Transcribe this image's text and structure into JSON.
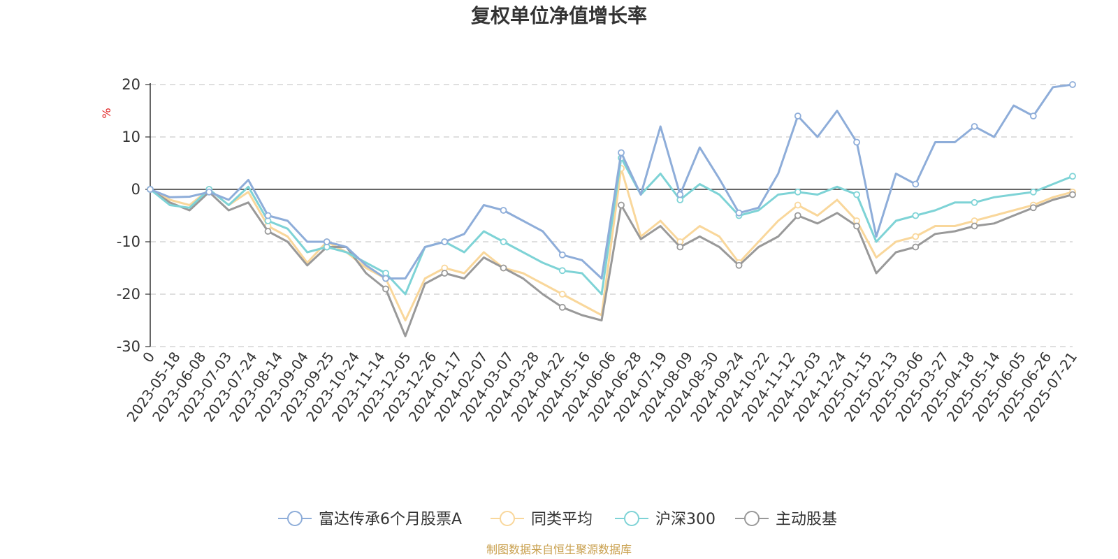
{
  "chart_data": {
    "type": "line",
    "title": "复权单位净值增长率",
    "ylabel": "%",
    "ylim": [
      -30,
      20
    ],
    "yticks": [
      "20",
      "10",
      "0",
      "-10",
      "-20",
      "-30"
    ],
    "x_ticks": [
      "0",
      "2023-05-18",
      "2023-06-08",
      "2023-07-03",
      "2023-07-24",
      "2023-08-14",
      "2023-09-04",
      "2023-09-25",
      "2023-10-24",
      "2023-11-14",
      "2023-12-05",
      "2023-12-26",
      "2024-01-17",
      "2024-02-07",
      "2024-03-07",
      "2024-03-28",
      "2024-04-22",
      "2024-05-16",
      "2024-06-06",
      "2024-06-28",
      "2024-07-19",
      "2024-08-09",
      "2024-08-30",
      "2024-09-24",
      "2024-10-22",
      "2024-11-12",
      "2024-12-03",
      "2024-12-24",
      "2025-01-15",
      "2025-02-13",
      "2025-03-06",
      "2025-03-27",
      "2025-04-18",
      "2025-05-14",
      "2025-06-05",
      "2025-06-26",
      "2025-07-21"
    ],
    "grid": true,
    "legend_position": "bottom",
    "series": [
      {
        "name": "富达传承6个月股票A",
        "color": "#8eadd9",
        "values": [
          0,
          -1.5,
          -1.4,
          -0.5,
          -2,
          1.8,
          -5,
          -6,
          -10,
          -10,
          -11,
          -14.5,
          -17,
          -17,
          -11,
          -10,
          -8.5,
          -3,
          -4,
          -6,
          -8,
          -12.5,
          -13.5,
          -17,
          7,
          -1,
          12,
          -1,
          8,
          2,
          -4.5,
          -3.5,
          3,
          14,
          10,
          15,
          9,
          -9,
          3,
          1,
          9,
          9,
          12,
          10,
          16,
          14,
          19.5,
          20
        ]
      },
      {
        "name": "同类平均",
        "color": "#f9d79b",
        "values": [
          0,
          -2,
          -3,
          0,
          -3,
          -0.5,
          -7,
          -9,
          -14,
          -10,
          -12,
          -15,
          -17,
          -25,
          -17,
          -15,
          -16,
          -12,
          -15,
          -16,
          -18,
          -20,
          -22,
          -24,
          4,
          -9,
          -6,
          -10,
          -7,
          -9,
          -14,
          -10,
          -6,
          -3,
          -5,
          -2,
          -6,
          -13,
          -10,
          -9,
          -7,
          -7,
          -6,
          -5,
          -4,
          -3,
          -1.5,
          -0.5
        ]
      },
      {
        "name": "沪深300",
        "color": "#7ed3d6",
        "values": [
          0,
          -3,
          -3.5,
          0,
          -3,
          0.5,
          -6,
          -7.5,
          -12,
          -11,
          -12,
          -14,
          -16,
          -20,
          -11,
          -10,
          -12,
          -8,
          -10,
          -12,
          -14,
          -15.5,
          -16,
          -20,
          6,
          -1,
          3,
          -2,
          1,
          -1,
          -5,
          -4,
          -1,
          -0.5,
          -1,
          0.5,
          -1,
          -10,
          -6,
          -5,
          -4,
          -2.5,
          -2.5,
          -1.5,
          -1,
          -0.5,
          1,
          2.5
        ]
      },
      {
        "name": "主动股基",
        "color": "#999999",
        "values": [
          0,
          -2.5,
          -4,
          -0.5,
          -4,
          -2.5,
          -8,
          -10,
          -14.5,
          -11,
          -11,
          -16,
          -19,
          -28,
          -18,
          -16,
          -17,
          -13,
          -15,
          -17,
          -20,
          -22.5,
          -24,
          -25,
          -3,
          -9.5,
          -7,
          -11,
          -9,
          -11,
          -14.5,
          -11,
          -9,
          -5,
          -6.5,
          -4.5,
          -7,
          -16,
          -12,
          -11,
          -8.5,
          -8,
          -7,
          -6.5,
          -5,
          -3.5,
          -2,
          -1
        ]
      }
    ],
    "marker_style": "hollow-circle"
  },
  "footer": {
    "source_text": "制图数据来自恒生聚源数据库",
    "source_color": "#c9a04e"
  },
  "colors": {
    "axis": "#333333",
    "grid": "#cccccc",
    "unit": "#e02020"
  }
}
